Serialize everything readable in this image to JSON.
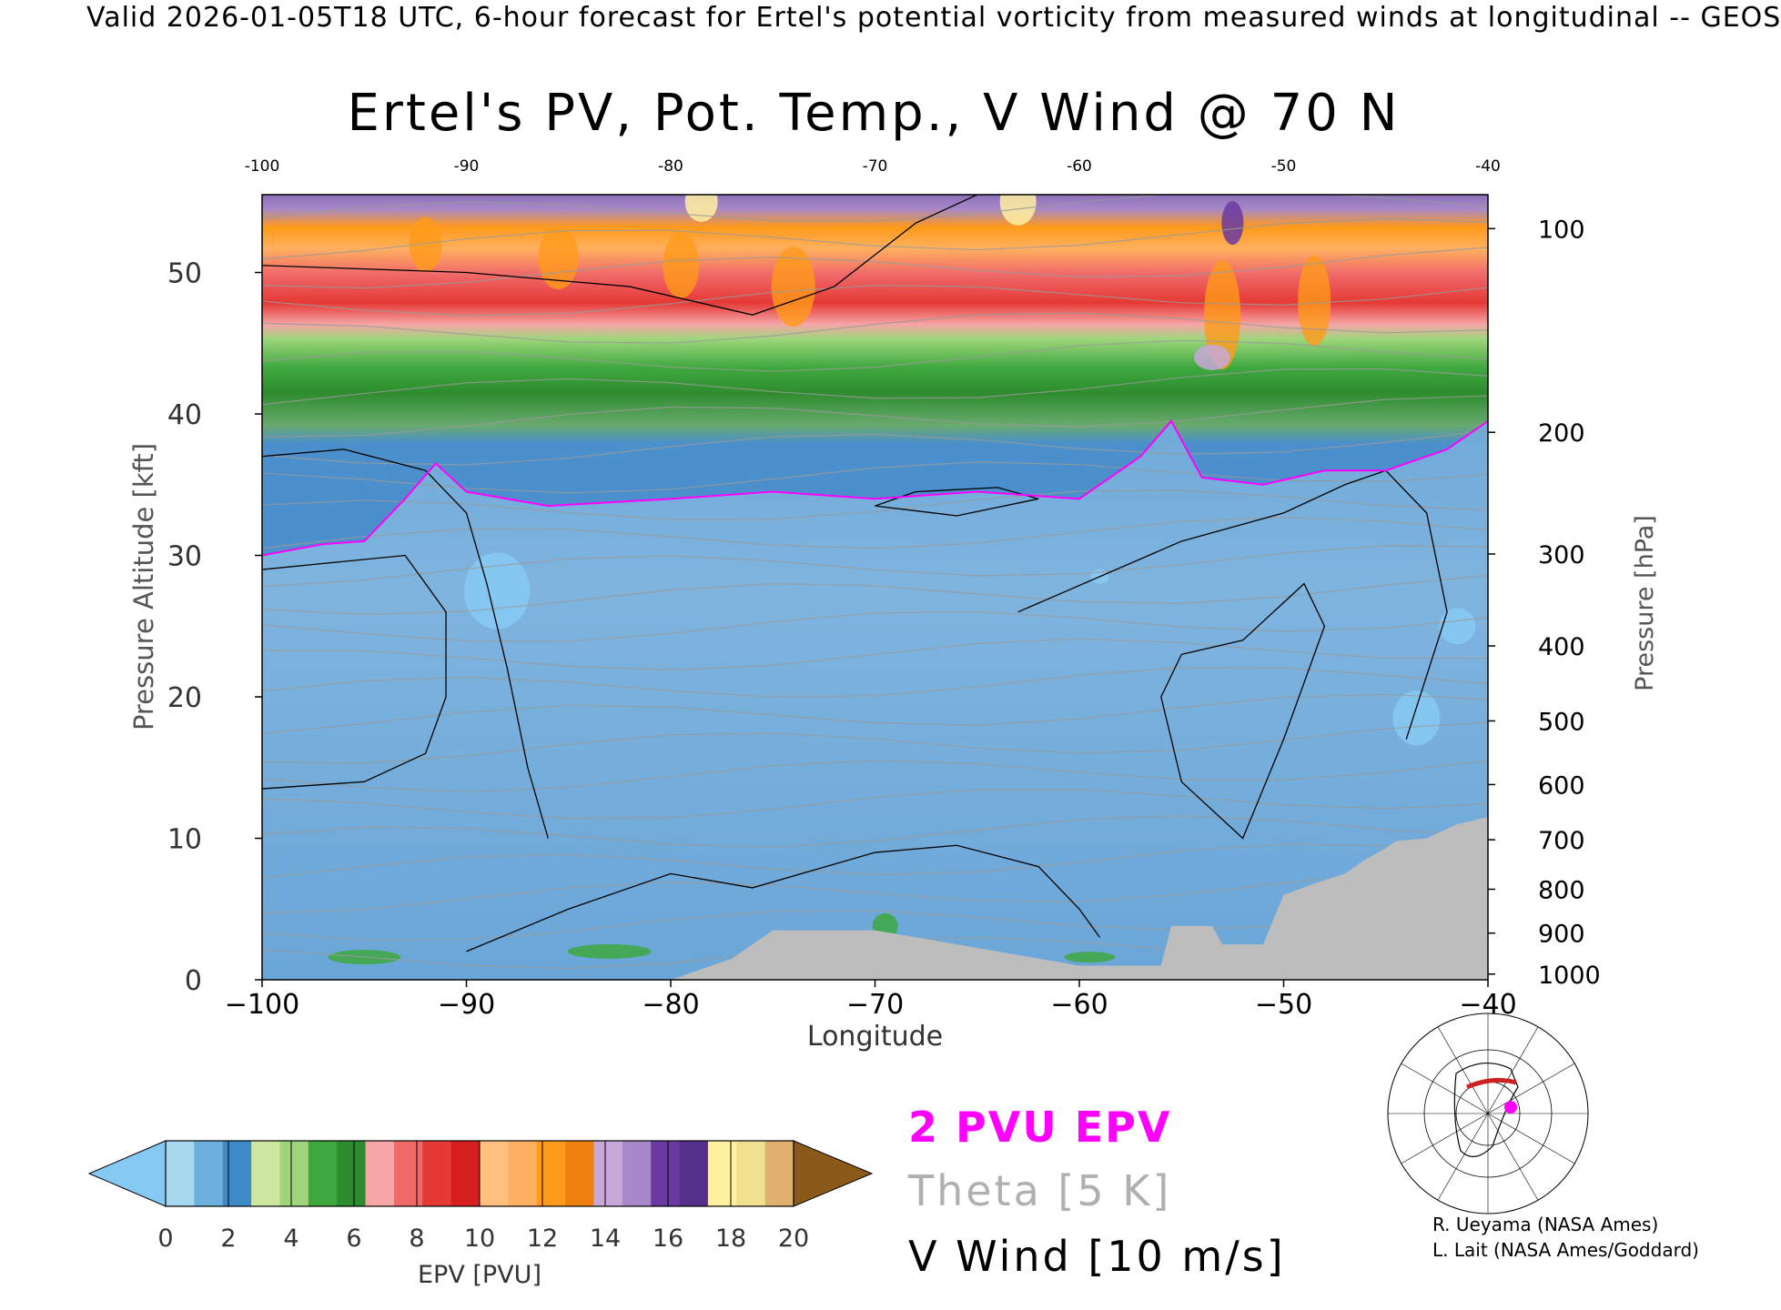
{
  "header": "Valid 2026-01-05T18 UTC, 6-hour forecast for Ertel's potential vorticity from measured winds at longitudinal -- GEOS",
  "title": "Ertel's PV, Pot. Temp., V Wind @ 70 N",
  "chart_data": {
    "type": "heatmap",
    "title": "Ertel's PV, Pot. Temp., V Wind @ 70 N",
    "xlabel": "Longitude",
    "ylabel": "Pressure Altitude [kft]",
    "y2label": "Pressure [hPa]",
    "xlim": [
      -100,
      -40
    ],
    "ylim": [
      0,
      55.5
    ],
    "x_ticks": [
      -100,
      -90,
      -80,
      -70,
      -60,
      -50,
      -40
    ],
    "x_tick_labels": [
      "−100",
      "−90",
      "−80",
      "−70",
      "−60",
      "−50",
      "−40"
    ],
    "top_tick_labels": [
      "-100",
      "-90",
      "-80",
      "-70",
      "-60",
      "-50",
      "-40"
    ],
    "y_ticks": [
      0,
      10,
      20,
      30,
      40,
      50
    ],
    "y_tick_labels": [
      "0",
      "10",
      "20",
      "30",
      "40",
      "50"
    ],
    "pressure_ticks": [
      {
        "label": "100",
        "kft": 53.1
      },
      {
        "label": "200",
        "kft": 38.7
      },
      {
        "label": "300",
        "kft": 30.1
      },
      {
        "label": "400",
        "kft": 23.6
      },
      {
        "label": "500",
        "kft": 18.3
      },
      {
        "label": "600",
        "kft": 13.8
      },
      {
        "label": "700",
        "kft": 9.9
      },
      {
        "label": "800",
        "kft": 6.4
      },
      {
        "label": "900",
        "kft": 3.3
      },
      {
        "label": "1000",
        "kft": 0.4
      }
    ],
    "tropopause_2pvu_kft": [
      [
        -100,
        30.0
      ],
      [
        -97,
        30.8
      ],
      [
        -95,
        31.0
      ],
      [
        -93,
        34.0
      ],
      [
        -91.5,
        36.5
      ],
      [
        -90,
        34.5
      ],
      [
        -86,
        33.5
      ],
      [
        -80,
        34.0
      ],
      [
        -75,
        34.5
      ],
      [
        -70,
        34.0
      ],
      [
        -65,
        34.5
      ],
      [
        -60,
        34.0
      ],
      [
        -57,
        37.0
      ],
      [
        -55.5,
        39.5
      ],
      [
        -54,
        35.5
      ],
      [
        -51,
        35.0
      ],
      [
        -48,
        36.0
      ],
      [
        -45,
        36.0
      ],
      [
        -42,
        37.5
      ],
      [
        -40,
        39.5
      ]
    ],
    "terrain_kft": [
      [
        -100,
        0
      ],
      [
        -80,
        0
      ],
      [
        -79,
        0.5
      ],
      [
        -77,
        1.5
      ],
      [
        -75,
        3.5
      ],
      [
        -73,
        3.5
      ],
      [
        -70,
        3.5
      ],
      [
        -60,
        1.0
      ],
      [
        -56,
        1.0
      ],
      [
        -55.5,
        3.8
      ],
      [
        -53.5,
        3.8
      ],
      [
        -53,
        2.5
      ],
      [
        -51,
        2.5
      ],
      [
        -50,
        6.0
      ],
      [
        -48.5,
        6.8
      ],
      [
        -47,
        7.5
      ],
      [
        -46,
        8.5
      ],
      [
        -45,
        9.3
      ],
      [
        -44.5,
        9.8
      ],
      [
        -43,
        10.0
      ],
      [
        -41.5,
        11.0
      ],
      [
        -40,
        11.5
      ]
    ],
    "colorbar": {
      "label": "EPV [PVU]",
      "ticks": [
        "0",
        "2",
        "4",
        "6",
        "8",
        "10",
        "12",
        "14",
        "16",
        "18",
        "20"
      ],
      "colors": [
        "#86c9f2",
        "#a6d8f0",
        "#6eb0dd",
        "#3f8ac8",
        "#cde6a0",
        "#9fd67c",
        "#3ea83e",
        "#2e8c2e",
        "#f6a6a6",
        "#f06a6a",
        "#e53935",
        "#d81f1f",
        "#ffc080",
        "#ffb060",
        "#ff9a1a",
        "#f08010",
        "#c8a8d8",
        "#a888c8",
        "#6a3aa0",
        "#55308a",
        "#fff0a0",
        "#f0e090",
        "#e0b070",
        "#8b5a1a"
      ]
    },
    "series": [
      {
        "name": "2 PVU EPV",
        "color": "#ff00ff"
      },
      {
        "name": "Theta [5 K]",
        "color": "#b0b0b0"
      },
      {
        "name": "V Wind [10 m/s]",
        "color": "#000000"
      }
    ]
  },
  "legend": {
    "pvu": "2 PVU EPV",
    "theta": "Theta [5 K]",
    "vwind": "V Wind [10 m/s]"
  },
  "credits": {
    "line1": "R. Ueyama (NASA Ames)",
    "line2": "L. Lait (NASA Ames/Goddard)"
  }
}
